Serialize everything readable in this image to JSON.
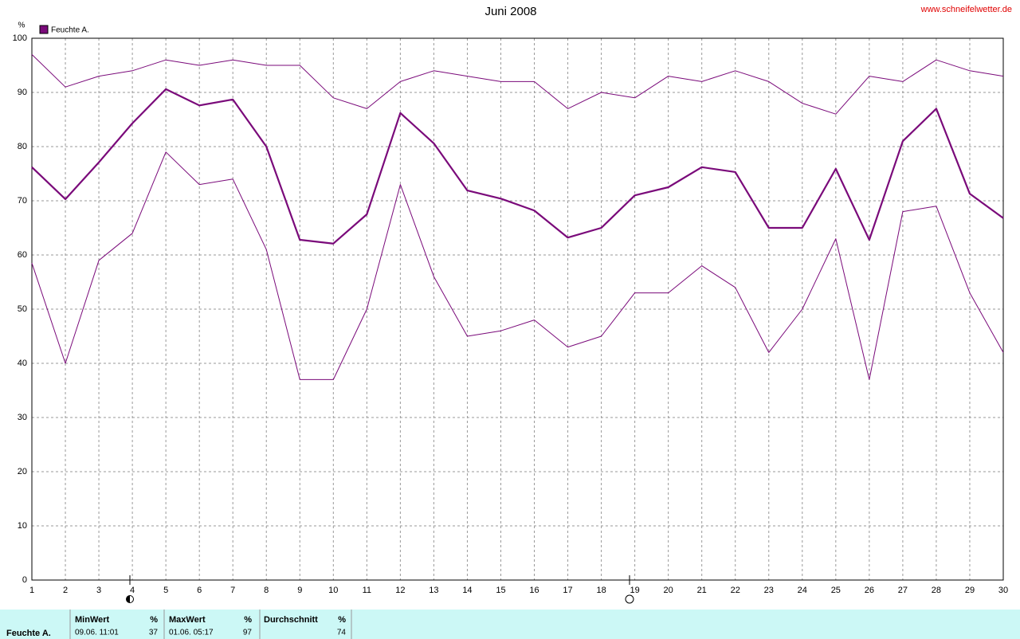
{
  "chart_data": {
    "type": "line",
    "title": "Juni 2008",
    "source": "www.schneifelwetter.de",
    "y_unit": "%",
    "x": [
      1,
      2,
      3,
      4,
      5,
      6,
      7,
      8,
      9,
      10,
      11,
      12,
      13,
      14,
      15,
      16,
      17,
      18,
      19,
      20,
      21,
      22,
      23,
      24,
      25,
      26,
      27,
      28,
      29,
      30
    ],
    "xlim": [
      1,
      30
    ],
    "xticks": [
      1,
      2,
      3,
      4,
      5,
      6,
      7,
      8,
      9,
      10,
      11,
      12,
      13,
      14,
      15,
      16,
      17,
      18,
      19,
      20,
      21,
      22,
      23,
      24,
      25,
      26,
      27,
      28,
      29,
      30
    ],
    "ylim": [
      0,
      100
    ],
    "yticks": [
      0,
      10,
      20,
      30,
      40,
      50,
      60,
      70,
      80,
      90,
      100
    ],
    "grid": true,
    "series": [
      {
        "name": "Feuchte A.",
        "color": "#7a0a7a",
        "values": [
          76.2,
          70.3,
          77.1,
          84.3,
          90.6,
          87.6,
          88.7,
          80,
          62.8,
          62.1,
          67.5,
          86.2,
          80.6,
          71.9,
          70.4,
          68.2,
          63.2,
          65,
          71,
          72.5,
          76.2,
          75.3,
          65,
          65,
          75.9,
          62.8,
          81,
          87,
          71.3,
          66.8
        ]
      },
      {
        "color": "#7a0a7a",
        "values": [
          97,
          91,
          93,
          94,
          96,
          95,
          96,
          95,
          95,
          89,
          87,
          92,
          94,
          93,
          92,
          92,
          87,
          90,
          89,
          93,
          92,
          94,
          92,
          88,
          86,
          93,
          92,
          96,
          94,
          93
        ]
      },
      {
        "color": "#7a0a7a",
        "values": [
          58.5,
          40,
          59,
          64,
          79,
          73,
          74,
          61,
          37,
          37,
          50,
          73,
          56,
          45,
          46,
          48,
          43,
          45,
          53,
          53,
          58,
          54,
          42,
          50,
          63,
          37,
          68,
          69,
          53,
          42
        ]
      }
    ]
  },
  "summary": {
    "label": "Feuchte A.",
    "min": {
      "header": "MinWert",
      "unit": "%",
      "date": "09.06.  11:01",
      "value": 37
    },
    "max": {
      "header": "MaxWert",
      "unit": "%",
      "date": "01.06.  05:17",
      "value": 97
    },
    "avg": {
      "header": "Durchschnitt",
      "unit": "%",
      "value": 74
    }
  }
}
